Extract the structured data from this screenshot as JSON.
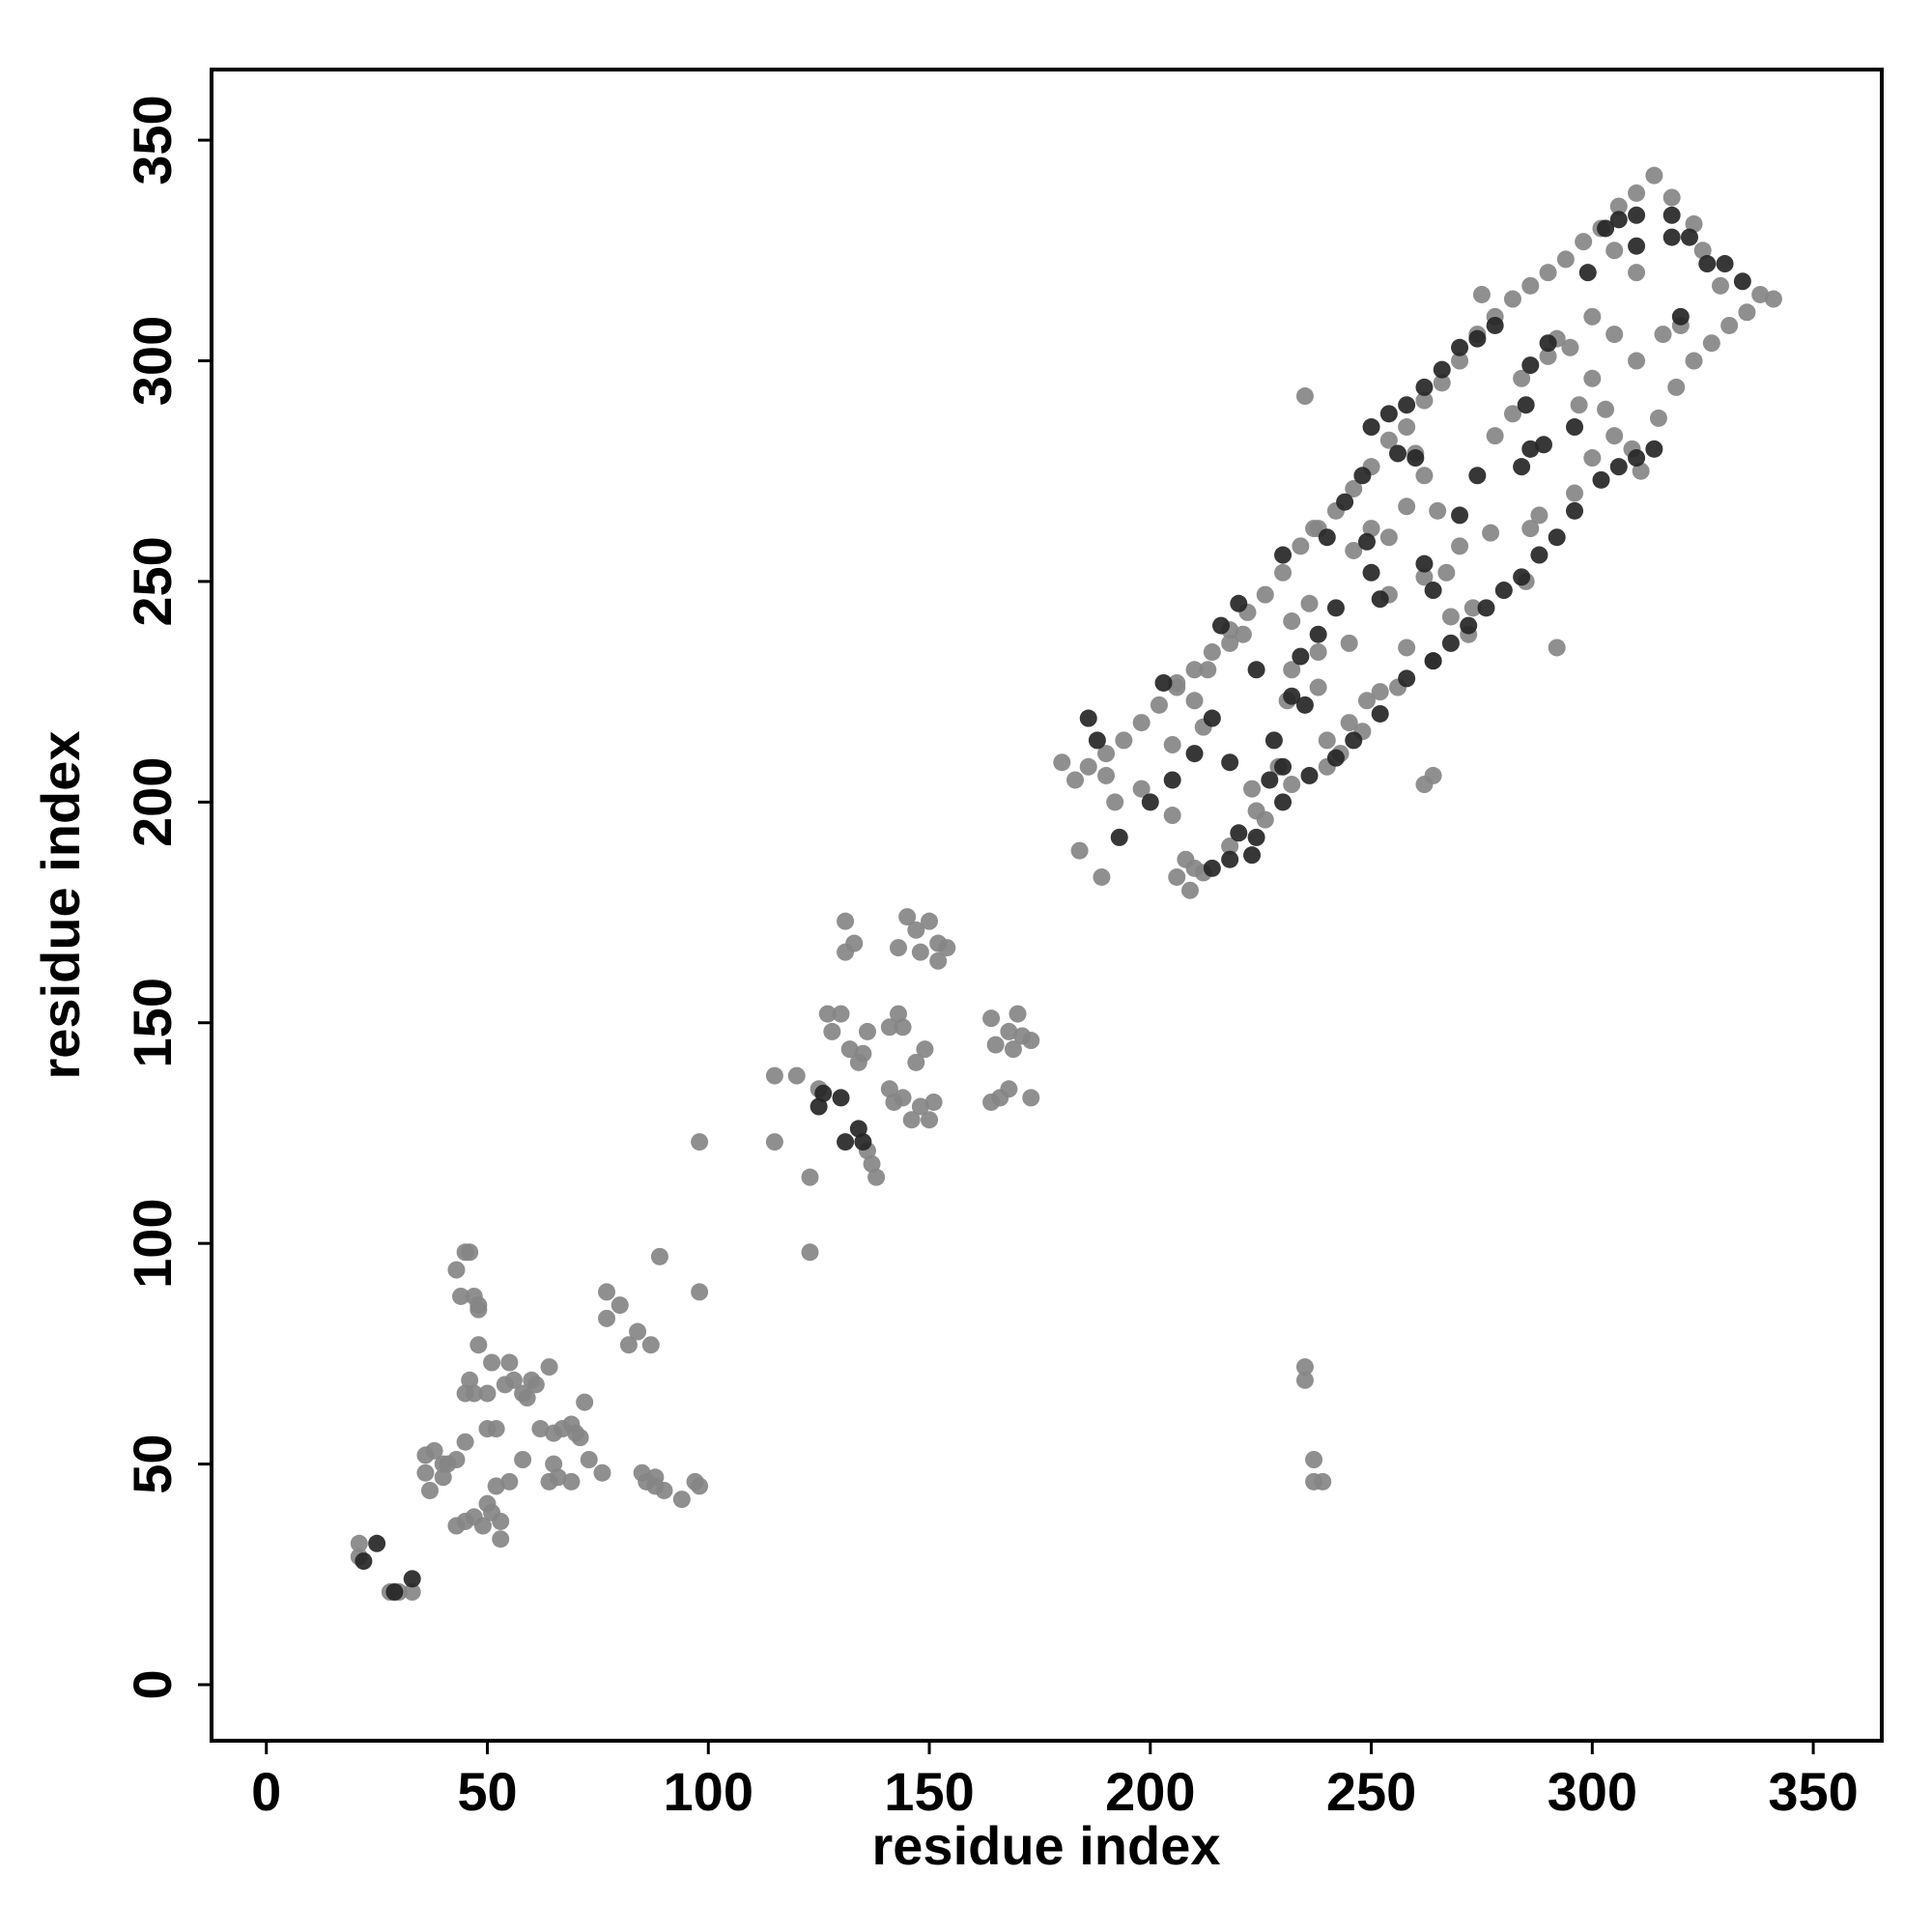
{
  "chart_data": {
    "type": "scatter",
    "x_label": "residue index",
    "y_label": "residue index",
    "xlim": [
      -12.4,
      365.5
    ],
    "ylim": [
      -12.7,
      366
    ],
    "xticks": [
      0,
      50,
      100,
      150,
      200,
      250,
      300,
      350
    ],
    "yticks": [
      0,
      50,
      100,
      150,
      200,
      250,
      300,
      350
    ],
    "series": [
      {
        "color": "#858585",
        "x": [
          21,
          21,
          28,
          30,
          33,
          43,
          44,
          45,
          46,
          47,
          48,
          48,
          48,
          46,
          45,
          47,
          51,
          50,
          55,
          54,
          56,
          58,
          59,
          60,
          61,
          64,
          62,
          65,
          67,
          69,
          70,
          71,
          72,
          73,
          65,
          66,
          69,
          76,
          45,
          43,
          40,
          38,
          36,
          36,
          37,
          40,
          41,
          43,
          45,
          47,
          49,
          50,
          51,
          52,
          53,
          53,
          50,
          52,
          55,
          58,
          64,
          77,
          77,
          80,
          82,
          84,
          87,
          89,
          85,
          86,
          88,
          88,
          90,
          94,
          97,
          98,
          98,
          98,
          115,
          115,
          120,
          123,
          123,
          125,
          127,
          128,
          130,
          131,
          131,
          133,
          132,
          134,
          135,
          136,
          137,
          136,
          138,
          141,
          143,
          144,
          141,
          142,
          144,
          146,
          147,
          149,
          148,
          150,
          151,
          143,
          145,
          147,
          148,
          150,
          152,
          152,
          154,
          164,
          165,
          166,
          168,
          168,
          169,
          170,
          171,
          173,
          173,
          164,
          180,
          183,
          184,
          186,
          189,
          190,
          192,
          198,
          205,
          205,
          209,
          208,
          206,
          210,
          206,
          210,
          212,
          213,
          218,
          221,
          223,
          226,
          229,
          231,
          232,
          236,
          237,
          235,
          235,
          235,
          237,
          237,
          239,
          262,
          264,
          240,
          245,
          249,
          252,
          243,
          238,
          245,
          250,
          254,
          258,
          260,
          262,
          265,
          267,
          270,
          273,
          277,
          282,
          286,
          292,
          290,
          292,
          295,
          297,
          300,
          303,
          305,
          288,
          285,
          296,
          300,
          305,
          309,
          311,
          315,
          319,
          323,
          327,
          331,
          335,
          338,
          341,
          329,
          325,
          323,
          318,
          314,
          310,
          306,
          302,
          298,
          294,
          290,
          286,
          282,
          278,
          274,
          270,
          266,
          262,
          258,
          254,
          250,
          246,
          242,
          238,
          234,
          230,
          226,
          222,
          218,
          214,
          210,
          206,
          202,
          198,
          194,
          190,
          310,
          305,
          310,
          300,
          284,
          278,
          275,
          320,
          316,
          268,
          272,
          264,
          256,
          248,
          240,
          232,
          224,
          218,
          212,
          254,
          258,
          262,
          246,
          232,
          238
        ],
        "y": [
          29,
          32,
          21,
          21,
          21,
          94,
          88,
          98,
          98,
          88,
          86,
          85,
          77,
          69,
          66,
          66,
          73,
          66,
          73,
          68,
          69,
          66,
          65,
          69,
          68,
          72,
          58,
          57,
          58,
          59,
          57,
          56,
          64,
          51,
          50,
          47,
          46,
          48,
          55,
          51,
          50,
          53,
          52,
          48,
          44,
          47,
          50,
          36,
          37,
          38,
          36,
          41,
          39,
          45,
          37,
          33,
          58,
          58,
          46,
          51,
          46,
          83,
          89,
          86,
          77,
          80,
          77,
          97,
          48,
          46,
          47,
          45,
          44,
          42,
          46,
          45,
          89,
          123,
          138,
          123,
          138,
          115,
          98,
          135,
          152,
          148,
          152,
          173,
          166,
          168,
          144,
          141,
          143,
          148,
          118,
          121,
          115,
          149,
          152,
          149,
          135,
          132,
          133,
          128,
          141,
          144,
          131,
          128,
          132,
          167,
          174,
          171,
          166,
          173,
          168,
          164,
          167,
          151,
          145,
          133,
          135,
          148,
          144,
          152,
          147,
          146,
          133,
          132,
          209,
          205,
          189,
          208,
          183,
          206,
          200,
          203,
          197,
          213,
          180,
          187,
          183,
          185,
          227,
          223,
          217,
          230,
          236,
          238,
          203,
          196,
          208,
          223,
          241,
          245,
          262,
          292,
          72,
          69,
          51,
          46,
          46,
          204,
          206,
          214,
          218,
          223,
          225,
          211,
          234,
          236,
          262,
          260,
          267,
          279,
          274,
          266,
          252,
          258,
          244,
          261,
          288,
          262,
          235,
          301,
          305,
          303,
          290,
          296,
          289,
          306,
          265,
          250,
          270,
          278,
          283,
          280,
          275,
          287,
          294,
          300,
          304,
          308,
          311,
          315,
          314,
          317,
          325,
          331,
          337,
          342,
          338,
          335,
          330,
          327,
          323,
          320,
          317,
          314,
          310,
          306,
          300,
          295,
          291,
          285,
          282,
          276,
          271,
          266,
          262,
          258,
          252,
          247,
          243,
          239,
          234,
          230,
          226,
          222,
          218,
          214,
          211,
          320,
          325,
          300,
          310,
          296,
          283,
          315,
          308,
          306,
          242,
          238,
          232,
          226,
          216,
          208,
          204,
          198,
          190,
          184,
          247,
          235,
          251,
          257,
          230,
          226
        ]
      },
      {
        "color": "#262626",
        "x": [
          22,
          25,
          29,
          33,
          125,
          126,
          130,
          131,
          134,
          135,
          186,
          188,
          193,
          200,
          203,
          205,
          210,
          214,
          218,
          220,
          223,
          227,
          228,
          230,
          232,
          235,
          224,
          216,
          220,
          230,
          240,
          244,
          248,
          250,
          254,
          258,
          262,
          266,
          270,
          274,
          278,
          285,
          284,
          289,
          286,
          286,
          290,
          296,
          299,
          303,
          306,
          310,
          318,
          322,
          326,
          330,
          334,
          320,
          314,
          310,
          306,
          302,
          296,
          292,
          288,
          284,
          280,
          276,
          272,
          268,
          264,
          258,
          252,
          246,
          242,
          236,
          230,
          224,
          218,
          214,
          252,
          249,
          250,
          262,
          264,
          270,
          274,
          260,
          256,
          242,
          238,
          234,
          310,
          318
        ],
        "y": [
          28,
          32,
          21,
          24,
          131,
          134,
          133,
          123,
          126,
          123,
          219,
          214,
          192,
          200,
          227,
          205,
          211,
          219,
          209,
          193,
          188,
          205,
          214,
          208,
          224,
          222,
          230,
          240,
          245,
          256,
          260,
          268,
          274,
          285,
          288,
          290,
          294,
          298,
          303,
          305,
          308,
          290,
          276,
          281,
          280,
          299,
          304,
          285,
          320,
          330,
          332,
          333,
          333,
          328,
          322,
          322,
          318,
          310,
          280,
          278,
          276,
          273,
          266,
          260,
          256,
          251,
          248,
          244,
          240,
          236,
          232,
          228,
          220,
          214,
          210,
          206,
          200,
          192,
          187,
          185,
          246,
          259,
          252,
          254,
          248,
          265,
          274,
          278,
          279,
          244,
          238,
          233,
          326,
          328
        ]
      }
    ]
  }
}
